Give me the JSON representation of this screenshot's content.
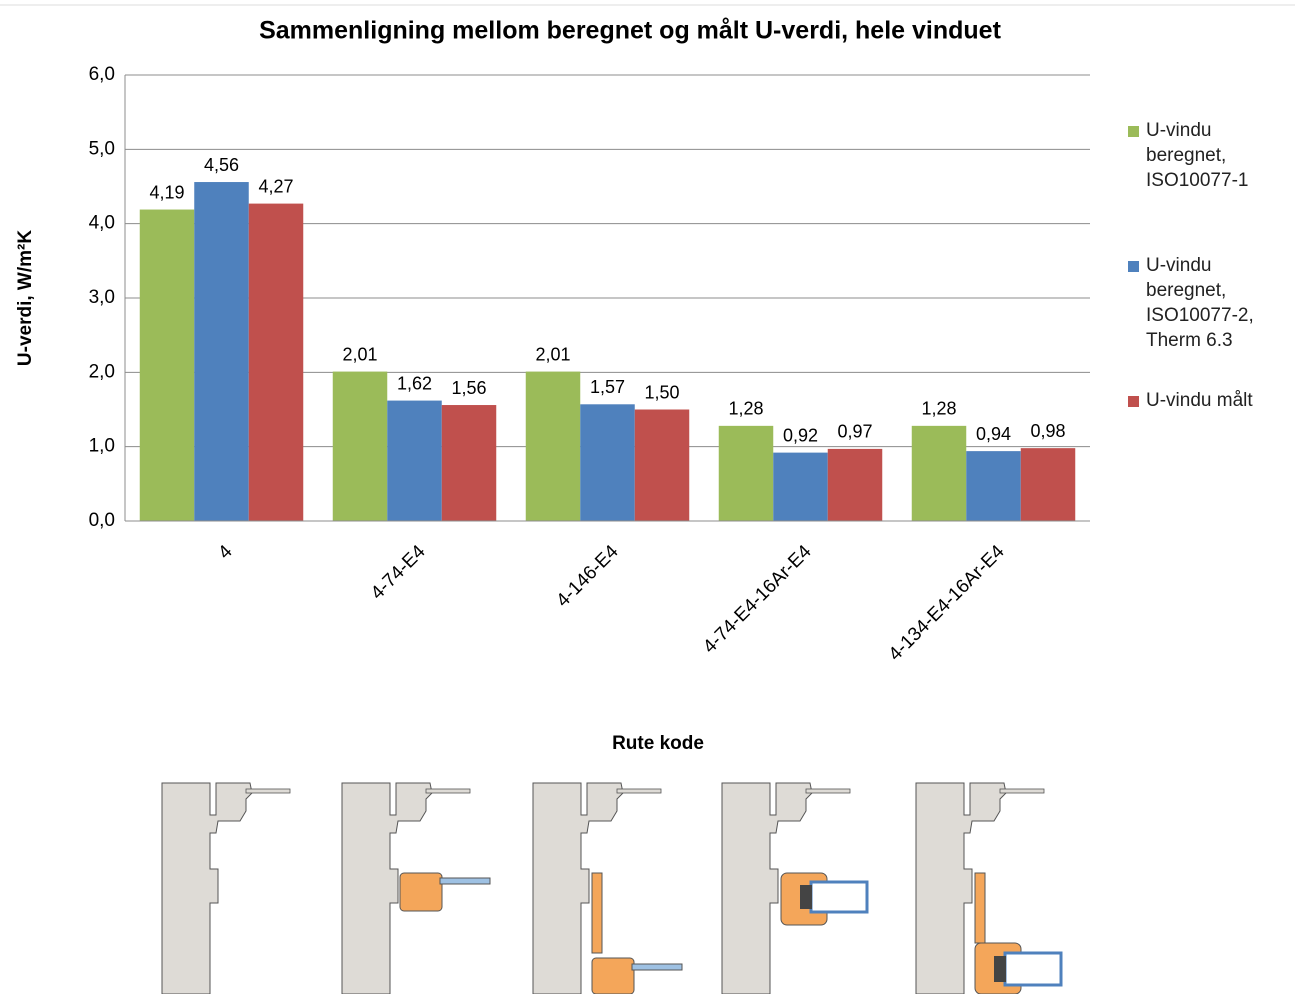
{
  "chart_data": {
    "type": "bar",
    "title": "Sammenligning  mellom  beregnet og målt U-verdi, hele vinduet",
    "y_label": "U-verdi, W/m²K",
    "x_label": "Rute kode",
    "categories": [
      "4",
      "4-74-E4",
      "4-146-E4",
      "4-74-E4-16Ar-E4",
      "4-134-E4-16Ar-E4"
    ],
    "series": [
      {
        "name": "U-vindu beregnet, ISO10077-1",
        "color": "#9bbb59",
        "values": [
          4.19,
          2.01,
          2.01,
          1.28,
          1.28
        ],
        "value_labels": [
          "4,19",
          "2,01",
          "2,01",
          "1,28",
          "1,28"
        ]
      },
      {
        "name": "U-vindu beregnet, ISO10077-2, Therm 6.3",
        "color": "#4f81bd",
        "values": [
          4.56,
          1.62,
          1.57,
          0.92,
          0.94
        ],
        "value_labels": [
          "4,56",
          "1,62",
          "1,57",
          "0,92",
          "0,94"
        ]
      },
      {
        "name": "U-vindu målt",
        "color": "#c0504d",
        "values": [
          4.27,
          1.56,
          1.5,
          0.97,
          0.98
        ],
        "value_labels": [
          "4,27",
          "1,56",
          "1,50",
          "0,97",
          "0,98"
        ]
      }
    ],
    "ylim": [
      0,
      6
    ],
    "yticks": [
      {
        "value": 0,
        "label": "0,0"
      },
      {
        "value": 1,
        "label": "1,0"
      },
      {
        "value": 2,
        "label": "2,0"
      },
      {
        "value": 3,
        "label": "3,0"
      },
      {
        "value": 4,
        "label": "4,0"
      },
      {
        "value": 5,
        "label": "5,0"
      },
      {
        "value": 6,
        "label": "6,0"
      }
    ],
    "grid": true,
    "legend": "right"
  }
}
